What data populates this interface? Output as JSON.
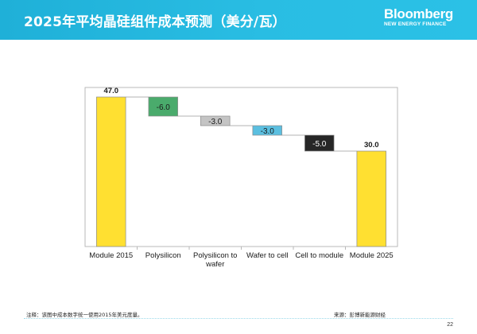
{
  "header": {
    "title": "2025年平均晶硅组件成本预测（美分/瓦）",
    "logo_main": "Bloomberg",
    "logo_sub": "NEW ENERGY FINANCE"
  },
  "footer": {
    "note": "注释：该图中成本数字统一使用2015年美元度量。",
    "source": "来源：彭博新能源财经",
    "page_number": "22"
  },
  "chart_data": {
    "type": "bar",
    "subtype": "waterfall",
    "ylim": [
      0,
      50
    ],
    "steps": [
      {
        "category": "Module 2015",
        "kind": "total",
        "value": 47.0,
        "label": "47.0",
        "color": "#ffe031"
      },
      {
        "category": "Polysilicon",
        "kind": "delta",
        "value": -6.0,
        "label": "-6.0",
        "color": "#4aab6c"
      },
      {
        "category": "Polysilicon to wafer",
        "kind": "delta",
        "value": -3.0,
        "label": "-3.0",
        "color": "#c4c4c4"
      },
      {
        "category": "Wafer to cell",
        "kind": "delta",
        "value": -3.0,
        "label": "-3.0",
        "color": "#5bbfe0"
      },
      {
        "category": "Cell to module",
        "kind": "delta",
        "value": -5.0,
        "label": "-5.0",
        "color": "#262626"
      },
      {
        "category": "Module 2025",
        "kind": "total",
        "value": 30.0,
        "label": "30.0",
        "color": "#ffe031"
      }
    ]
  }
}
